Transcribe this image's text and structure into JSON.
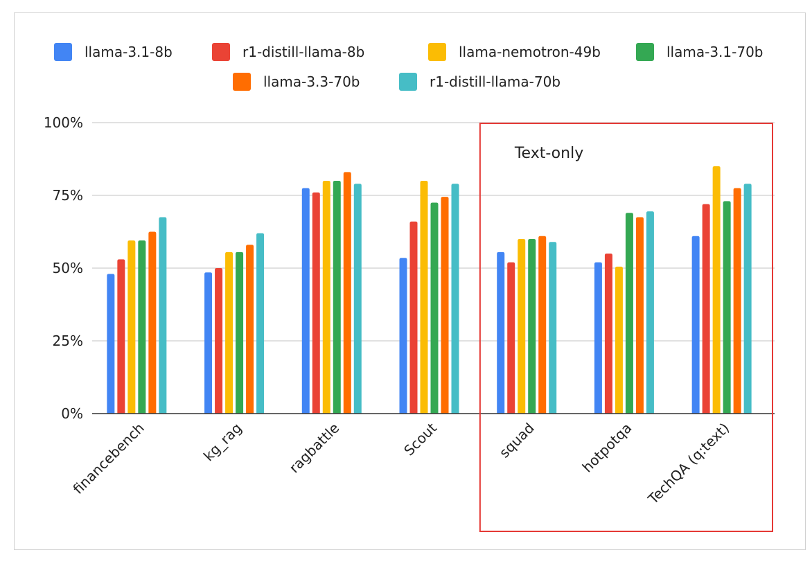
{
  "chart_data": {
    "type": "bar",
    "title": "",
    "xlabel": "",
    "ylabel": "",
    "ylim": [
      0,
      100
    ],
    "y_ticks": [
      0,
      25,
      50,
      75,
      100
    ],
    "y_tick_labels": [
      "0%",
      "25%",
      "50%",
      "75%",
      "100%"
    ],
    "grid": true,
    "legend_position": "top-center",
    "categories": [
      "financebench",
      "kg_rag",
      "ragbattle",
      "Scout",
      "squad",
      "hotpotqa",
      "TechQA (q:text)"
    ],
    "series": [
      {
        "name": "llama-3.1-8b",
        "color": "#4285F4",
        "values": [
          48,
          48.5,
          77.5,
          53.5,
          55.5,
          52,
          61
        ]
      },
      {
        "name": "r1-distill-llama-8b",
        "color": "#EA4335",
        "values": [
          53,
          50,
          76,
          66,
          52,
          55,
          72
        ]
      },
      {
        "name": "llama-nemotron-49b",
        "color": "#FBBC04",
        "values": [
          59.5,
          55.5,
          80,
          80,
          60,
          50.5,
          85
        ]
      },
      {
        "name": "llama-3.1-70b",
        "color": "#34A853",
        "values": [
          59.5,
          55.5,
          80,
          72.5,
          60,
          69,
          73
        ]
      },
      {
        "name": "llama-3.3-70b",
        "color": "#FF6D01",
        "values": [
          62.5,
          58,
          83,
          74.5,
          61,
          67.5,
          77.5
        ]
      },
      {
        "name": "r1-distill-llama-70b",
        "color": "#46BDC6",
        "values": [
          67.5,
          62,
          79,
          79,
          59,
          69.5,
          79
        ]
      }
    ],
    "annotations": [
      {
        "text": "Text-only",
        "highlight_categories": [
          "squad",
          "hotpotqa",
          "TechQA (q:text)"
        ],
        "box_color": "#E53935"
      }
    ]
  }
}
